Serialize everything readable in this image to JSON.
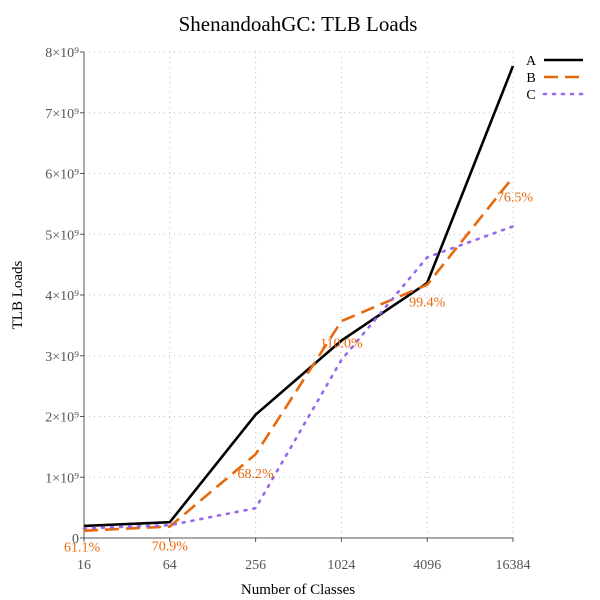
{
  "chart_data": {
    "type": "line",
    "title": "ShenandoahGC: TLB Loads",
    "xlabel": "Number of Classes",
    "ylabel": "TLB Loads",
    "x": [
      16,
      64,
      256,
      1024,
      4096,
      16384
    ],
    "x_tick_labels": [
      "16",
      "64",
      "256",
      "1024",
      "4096",
      "16384"
    ],
    "x_scale": "log2",
    "ylim": [
      0,
      8000000000
    ],
    "y_tick_labels": [
      "0",
      "1×10⁹",
      "2×10⁹",
      "3×10⁹",
      "4×10⁹",
      "5×10⁹",
      "6×10⁹",
      "7×10⁹",
      "8×10⁹"
    ],
    "y_ticks": [
      0,
      1000000000,
      2000000000,
      3000000000,
      4000000000,
      5000000000,
      6000000000,
      7000000000,
      8000000000
    ],
    "grid": true,
    "legend_position": "top-right",
    "series": [
      {
        "name": "A",
        "color": "#000000",
        "style": "solid",
        "values": [
          200000000,
          260000000,
          2030000000,
          3250000000,
          4200000000,
          7770000000
        ]
      },
      {
        "name": "B",
        "color": "#e8690b",
        "style": "dashed",
        "values": [
          120000000,
          190000000,
          1380000000,
          3570000000,
          4170000000,
          5940000000
        ]
      },
      {
        "name": "C",
        "color": "#9966ee",
        "style": "dotted",
        "values": [
          160000000,
          210000000,
          490000000,
          2930000000,
          4620000000,
          5130000000
        ]
      }
    ],
    "annotations": [
      {
        "text": "61.1%",
        "x": 16,
        "y": -140000000
      },
      {
        "text": "70.9%",
        "x": 64,
        "y": -120000000
      },
      {
        "text": "68.2%",
        "x": 256,
        "y": 1070000000
      },
      {
        "text": "110.0%",
        "x": 1024,
        "y": 3220000000
      },
      {
        "text": "99.4%",
        "x": 4096,
        "y": 3890000000
      },
      {
        "text": "76.5%",
        "x": 16384,
        "y": 5620000000
      }
    ],
    "annotation_color": "#e8690b"
  }
}
